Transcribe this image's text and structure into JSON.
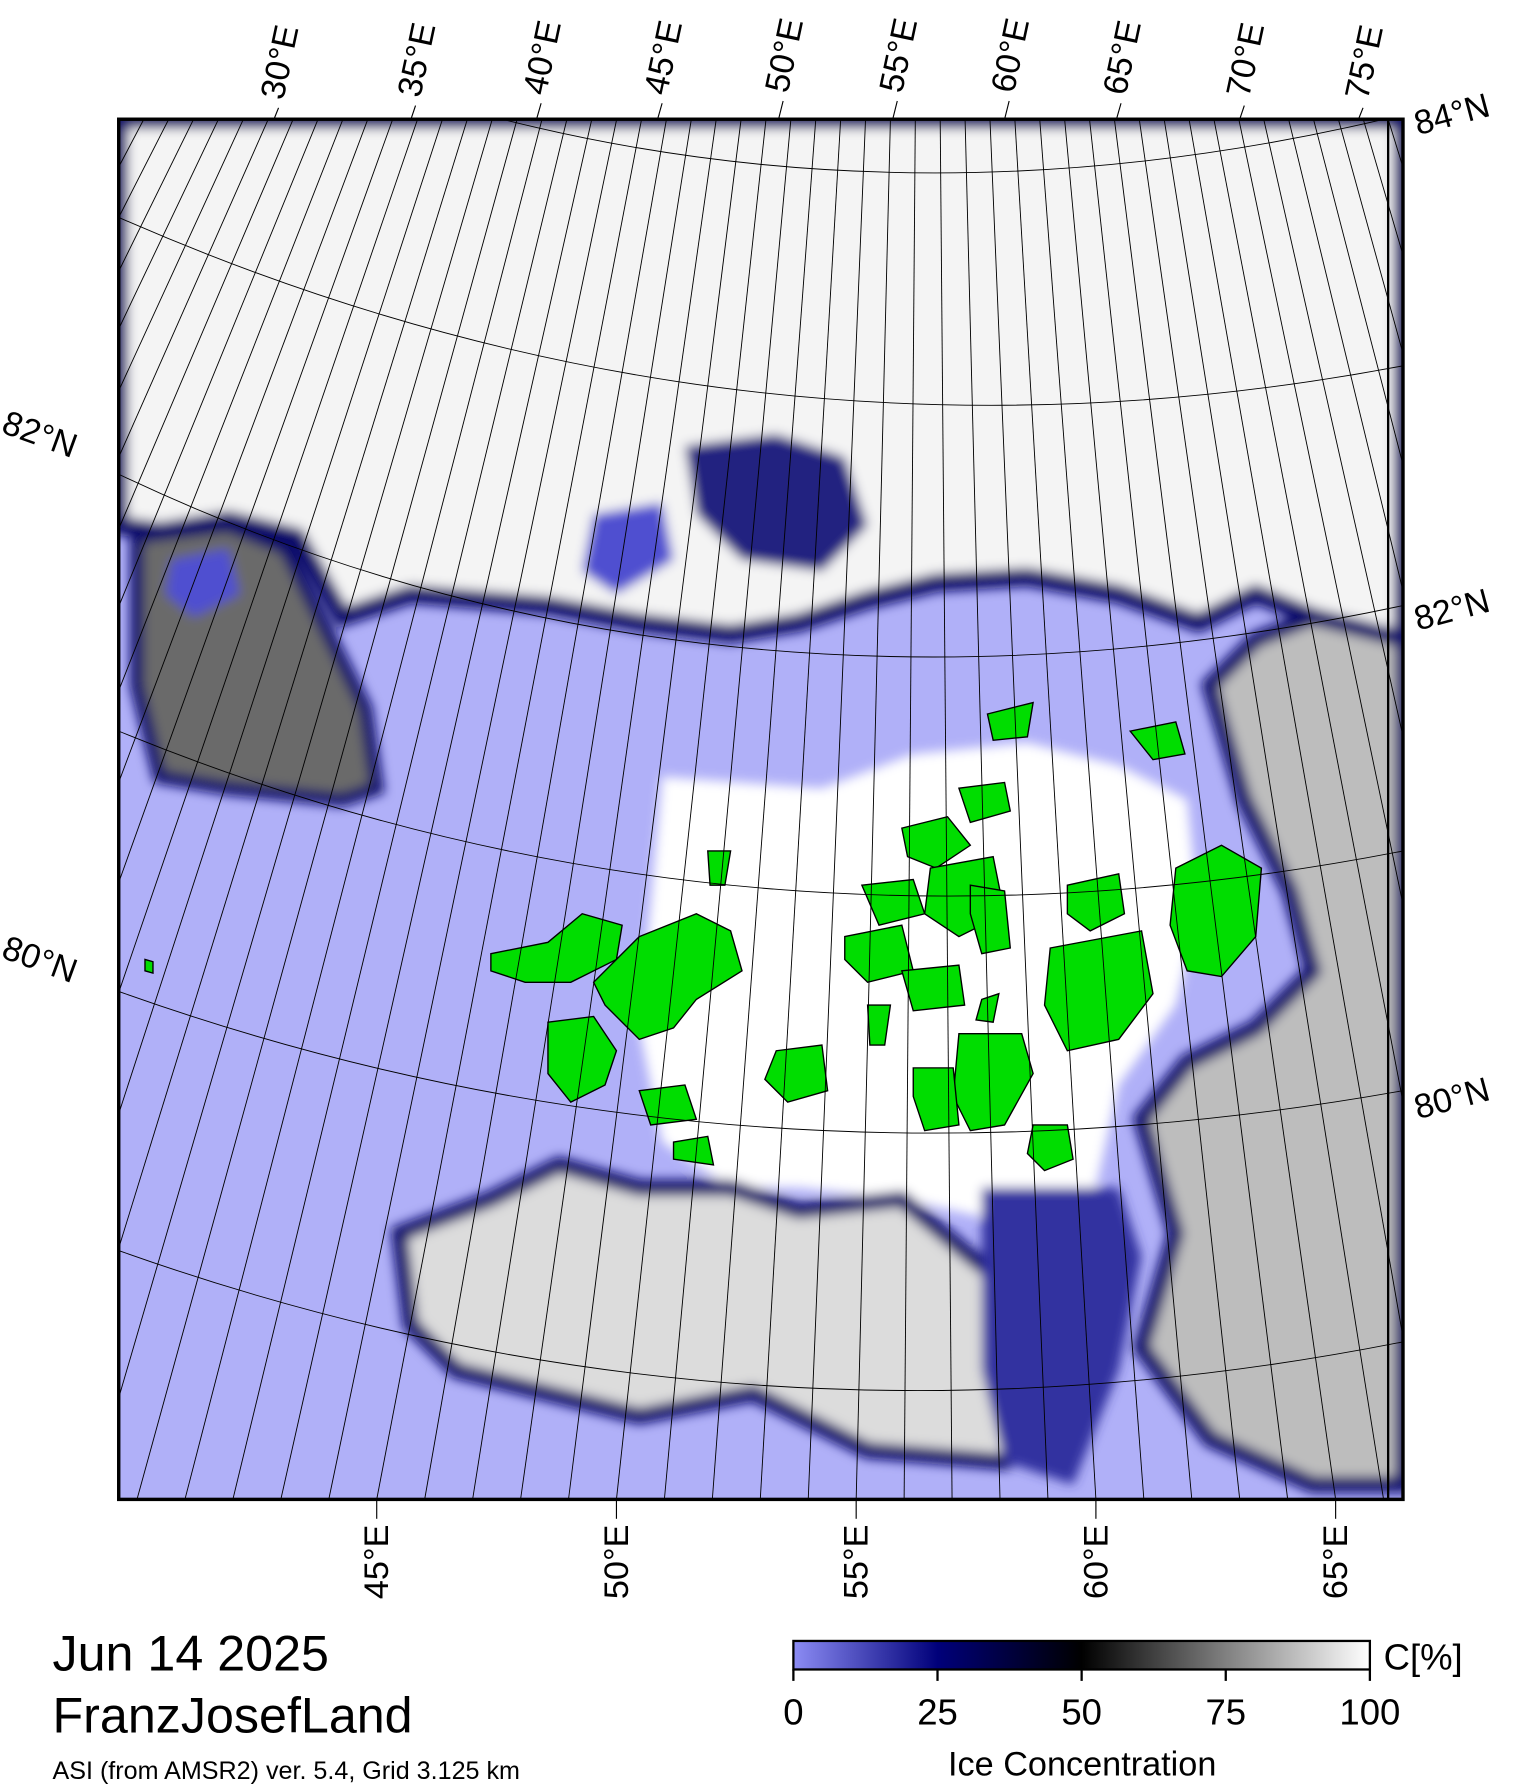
{
  "map": {
    "title": "Jun 14 2025",
    "region": "FranzJosefLand",
    "source": "ASI (from AMSR2) ver. 5.4,  Grid 3.125 km",
    "top_lon_labels": [
      "30°E",
      "35°E",
      "40°E",
      "45°E",
      "50°E",
      "55°E",
      "60°E",
      "65°E",
      "70°E",
      "75°E"
    ],
    "bottom_lon_labels": [
      "45°E",
      "50°E",
      "55°E",
      "60°E",
      "65°E"
    ],
    "left_lat_labels": [
      "82°N",
      "80°N"
    ],
    "right_lat_labels": [
      "84°N",
      "82°N",
      "80°N"
    ]
  },
  "colorbar": {
    "label": "Ice Concentration",
    "unit": "C[%]",
    "lim": [
      0,
      100
    ],
    "ticks": [
      0,
      25,
      50,
      75,
      100
    ]
  }
}
